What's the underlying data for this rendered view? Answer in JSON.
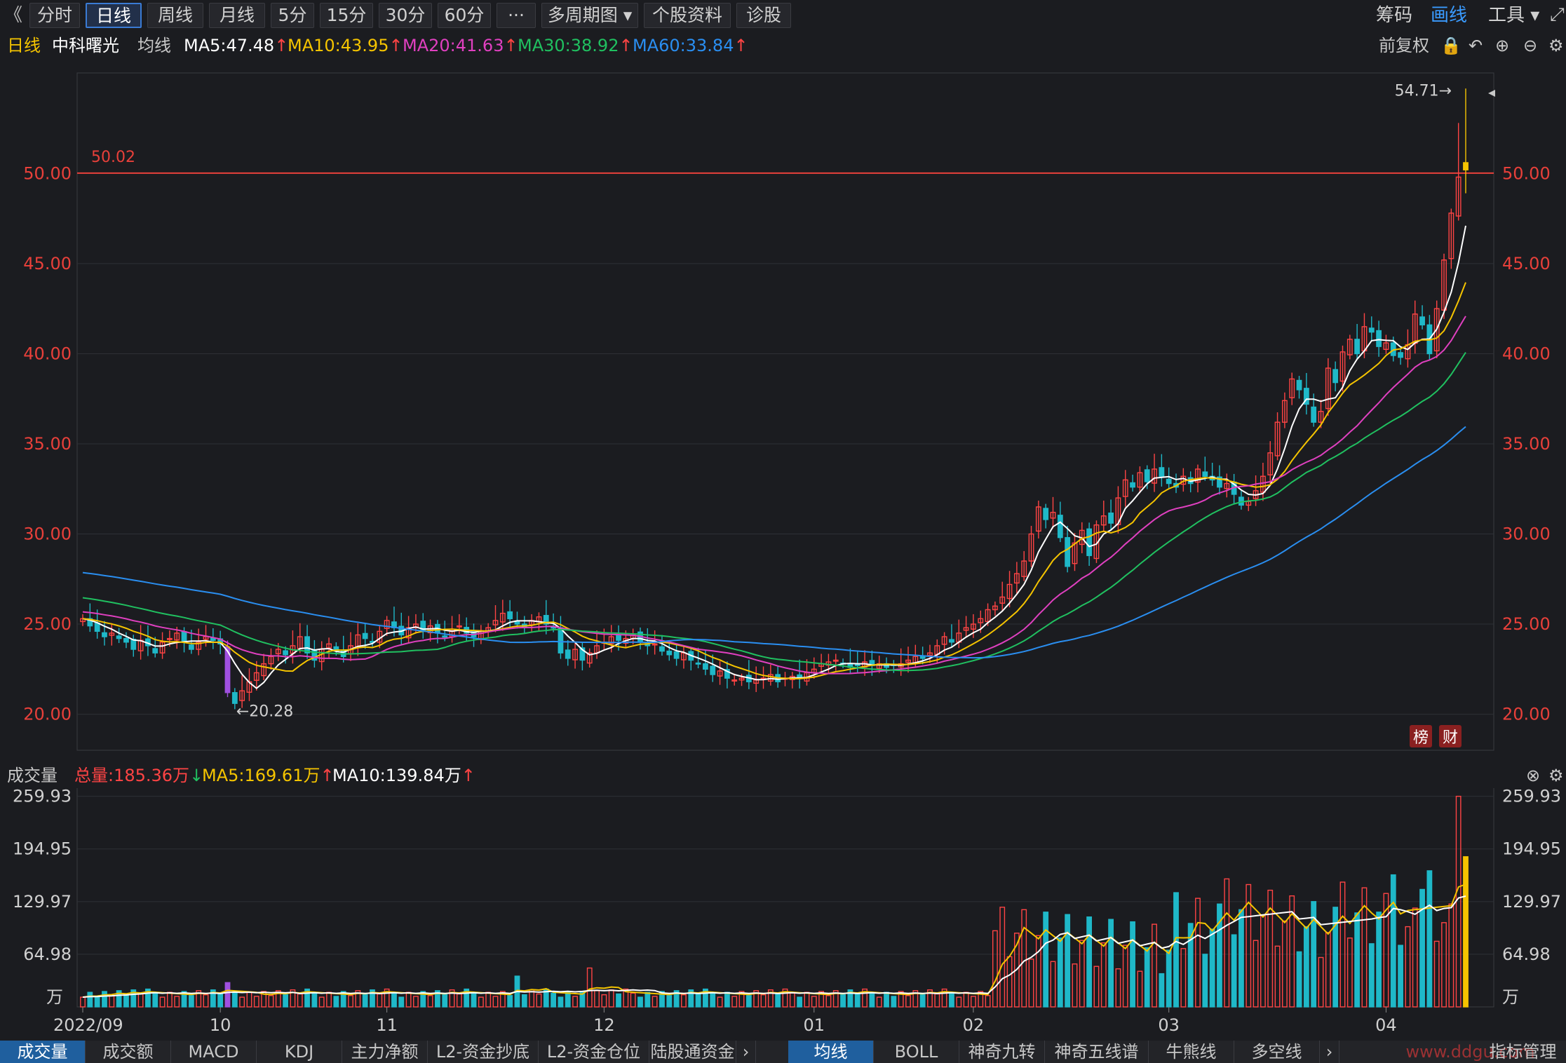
{
  "toolbar": {
    "back": "《",
    "tabs": [
      "分时",
      "日线",
      "周线",
      "月线",
      "5分",
      "15分",
      "30分",
      "60分",
      "···",
      "多周期图 ▾",
      "个股资料",
      "诊股"
    ],
    "active_index": 1,
    "right": [
      "筹码",
      "画线",
      "工具 ▾"
    ]
  },
  "info": {
    "period": "日线",
    "stock_name": "中科曙光",
    "ma_label": "均线",
    "ma5": "MA5:47.48",
    "ma10": "MA10:43.95",
    "ma20": "MA20:41.63",
    "ma30": "MA30:38.92",
    "ma60": "MA60:33.84",
    "adjust": "前复权",
    "up_arrow": "↑",
    "down_arrow": "↓"
  },
  "colors": {
    "up": "#ff4444",
    "down": "#1fb8c8",
    "ma5": "#ffffff",
    "ma10": "#f5c400",
    "ma20": "#e040c0",
    "ma30": "#20c060",
    "ma60": "#2a8ef0",
    "grid": "#2e3036",
    "axis_text": "#e8403a",
    "highlight": "#a050e0"
  },
  "volume_bar": {
    "label": "成交量",
    "total": "总量:185.36万",
    "ma5": "MA5:169.61万",
    "ma10": "MA10:139.84万"
  },
  "bottom_tabs_left": [
    "成交量",
    "成交额",
    "MACD",
    "KDJ",
    "主力净额",
    "L2-资金抄底",
    "L2-资金仓位",
    "陆股通资金"
  ],
  "bottom_tabs_right": [
    "均线",
    "BOLL",
    "神奇九转",
    "神奇五线谱",
    "牛熊线",
    "多空线"
  ],
  "bottom_right_label": "指标管理",
  "watermark": "www.ddgu.com",
  "badges": [
    "榜",
    "财"
  ],
  "chart_data": {
    "type": "candlestick",
    "title": "中科曙光",
    "price_ticks": [
      "50.00",
      "45.00",
      "40.00",
      "35.00",
      "30.00",
      "25.00",
      "20.00"
    ],
    "ylim": [
      18.0,
      55.5
    ],
    "ref_line": {
      "value": 50.02,
      "label": "50.02"
    },
    "max_label": "54.71→",
    "min_label": "←20.28",
    "volume_ticks": [
      "259.93",
      "194.95",
      "129.97",
      "64.98"
    ],
    "volume_unit": "万",
    "volume_ylim": [
      0,
      270
    ],
    "x_labels": [
      {
        "i": 0,
        "label": "2022/09"
      },
      {
        "i": 19,
        "label": "10"
      },
      {
        "i": 42,
        "label": "11"
      },
      {
        "i": 72,
        "label": "12"
      },
      {
        "i": 101,
        "label": "01"
      },
      {
        "i": 123,
        "label": "02"
      },
      {
        "i": 150,
        "label": "03"
      },
      {
        "i": 180,
        "label": "04"
      }
    ],
    "close": [
      25.3,
      24.9,
      24.6,
      24.3,
      24.5,
      24.2,
      24.0,
      23.6,
      24.1,
      23.8,
      23.4,
      24.0,
      24.2,
      24.5,
      24.0,
      23.6,
      24.0,
      24.3,
      24.1,
      23.9,
      21.2,
      20.6,
      21.3,
      21.8,
      22.3,
      22.8,
      23.2,
      23.6,
      23.3,
      23.8,
      24.3,
      23.4,
      23.0,
      23.6,
      23.9,
      23.5,
      23.2,
      23.8,
      24.4,
      24.2,
      24.0,
      24.6,
      25.2,
      24.8,
      24.4,
      24.8,
      25.0,
      24.6,
      24.9,
      24.5,
      24.3,
      24.7,
      24.9,
      24.5,
      24.3,
      24.6,
      24.8,
      25.2,
      25.6,
      25.3,
      25.0,
      24.8,
      25.2,
      25.4,
      25.0,
      24.8,
      23.4,
      23.1,
      23.6,
      23.0,
      23.4,
      23.8,
      24.0,
      24.3,
      24.1,
      24.2,
      24.4,
      24.0,
      23.8,
      23.9,
      23.5,
      23.3,
      23.1,
      23.4,
      23.0,
      22.8,
      22.5,
      22.2,
      22.4,
      22.0,
      21.9,
      22.0,
      21.8,
      21.9,
      22.0,
      22.2,
      21.8,
      22.0,
      22.1,
      22.0,
      22.3,
      22.5,
      22.8,
      22.9,
      23.0,
      22.8,
      22.6,
      22.7,
      22.9,
      22.7,
      22.8,
      22.6,
      22.7,
      22.8,
      23.0,
      23.2,
      23.1,
      23.4,
      23.8,
      24.3,
      24.0,
      24.5,
      24.8,
      25.0,
      25.3,
      25.8,
      26.0,
      26.5,
      27.2,
      27.8,
      28.5,
      30.0,
      31.5,
      30.8,
      31.2,
      29.8,
      28.2,
      29.5,
      30.2,
      28.8,
      30.5,
      31.0,
      30.6,
      32.0,
      33.0,
      32.6,
      33.4,
      32.9,
      33.6,
      33.2,
      32.8,
      32.6,
      33.2,
      32.8,
      33.6,
      33.2,
      33.0,
      32.6,
      32.8,
      32.2,
      31.6,
      31.8,
      32.4,
      33.2,
      34.5,
      36.2,
      37.4,
      38.6,
      38.0,
      37.2,
      36.2,
      36.8,
      39.2,
      38.4,
      40.1,
      40.8,
      40.0,
      41.5,
      41.2,
      40.4,
      40.6,
      39.9,
      39.8,
      40.5,
      42.2,
      41.6,
      40.0,
      42.5,
      45.2,
      47.8,
      49.8,
      50.2
    ]
  }
}
